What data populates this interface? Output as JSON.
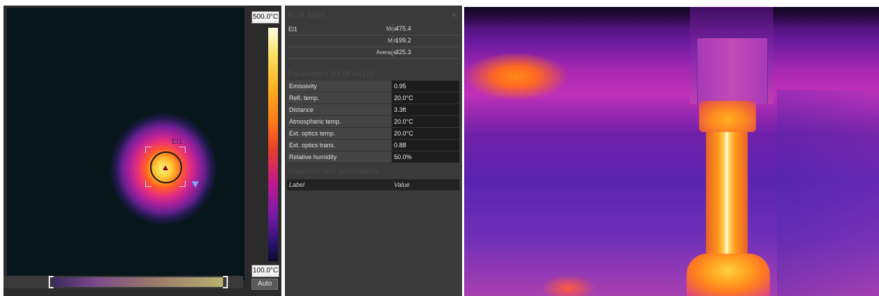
{
  "scale": {
    "max_label": "500.0°C",
    "min_label": "100.0°C",
    "palette": "iron"
  },
  "measurement": {
    "roi_label": "El1"
  },
  "controls": {
    "auto_label": "Auto"
  },
  "info_panel": {
    "camera_title": "FLIR A615",
    "collapse_icon": "collapse-icon",
    "measurements": [
      {
        "name": "El1",
        "stat": "Max",
        "value": "475.4"
      },
      {
        "name": "",
        "stat": "Min",
        "value": "199.2"
      },
      {
        "name": "",
        "stat": "Average",
        "value": "325.3"
      }
    ],
    "parameters_title": "Parameters (FLIR A615)",
    "parameters": [
      {
        "label": "Emissivity",
        "value": "0.95"
      },
      {
        "label": "Refl. temp.",
        "value": "20.0°C"
      },
      {
        "label": "Distance",
        "value": "3.3ft"
      },
      {
        "label": "Atmospheric temp.",
        "value": "20.0°C"
      },
      {
        "label": "Ext. optics temp.",
        "value": "20.0°C"
      },
      {
        "label": "Ext. optics trans.",
        "value": "0.88"
      },
      {
        "label": "Relative humidity",
        "value": "50.0%"
      }
    ],
    "annotations_title": "Snapshot text annotations",
    "annotations_header": {
      "label": "Label",
      "value": "Value"
    }
  },
  "colors": {
    "panel_bg": "#3a3a3a",
    "viewer_bg": "#2b2b2b",
    "image_bg": "#06161a"
  }
}
